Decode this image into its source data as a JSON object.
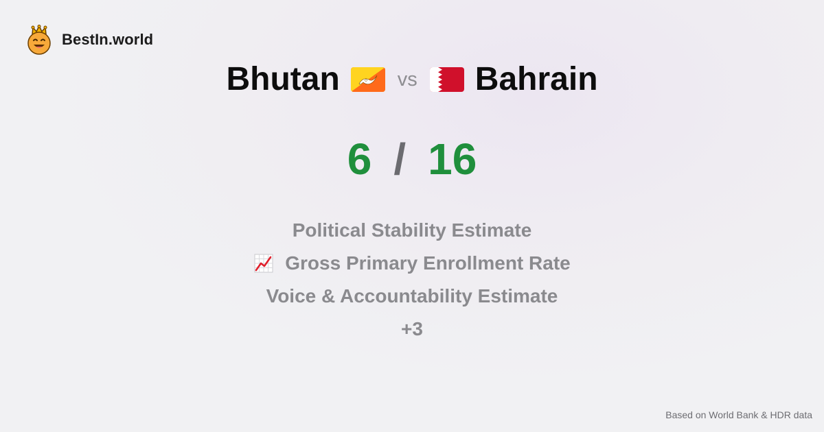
{
  "brand": {
    "name": "BestIn.world",
    "logo_icon": "crowned-smiley-icon"
  },
  "comparison": {
    "left": {
      "name": "Bhutan",
      "flag_icon": "bhutan-flag-icon",
      "score": "6"
    },
    "vs_label": "vs",
    "right": {
      "name": "Bahrain",
      "flag_icon": "bahrain-flag-icon",
      "score": "16"
    },
    "score_separator": "/"
  },
  "metrics": [
    {
      "label": "Political Stability Estimate",
      "icon": null
    },
    {
      "label": "Gross Primary Enrollment Rate",
      "icon": "chart-increasing-icon"
    },
    {
      "label": "Voice & Accountability Estimate",
      "icon": null
    },
    {
      "label": "+3",
      "icon": null
    }
  ],
  "footer": {
    "source_note": "Based on World Bank & HDR data"
  },
  "colors": {
    "score_green": "#1f8f3c",
    "metric_gray": "#8a8a8e",
    "title_black": "#0d0d0d"
  }
}
